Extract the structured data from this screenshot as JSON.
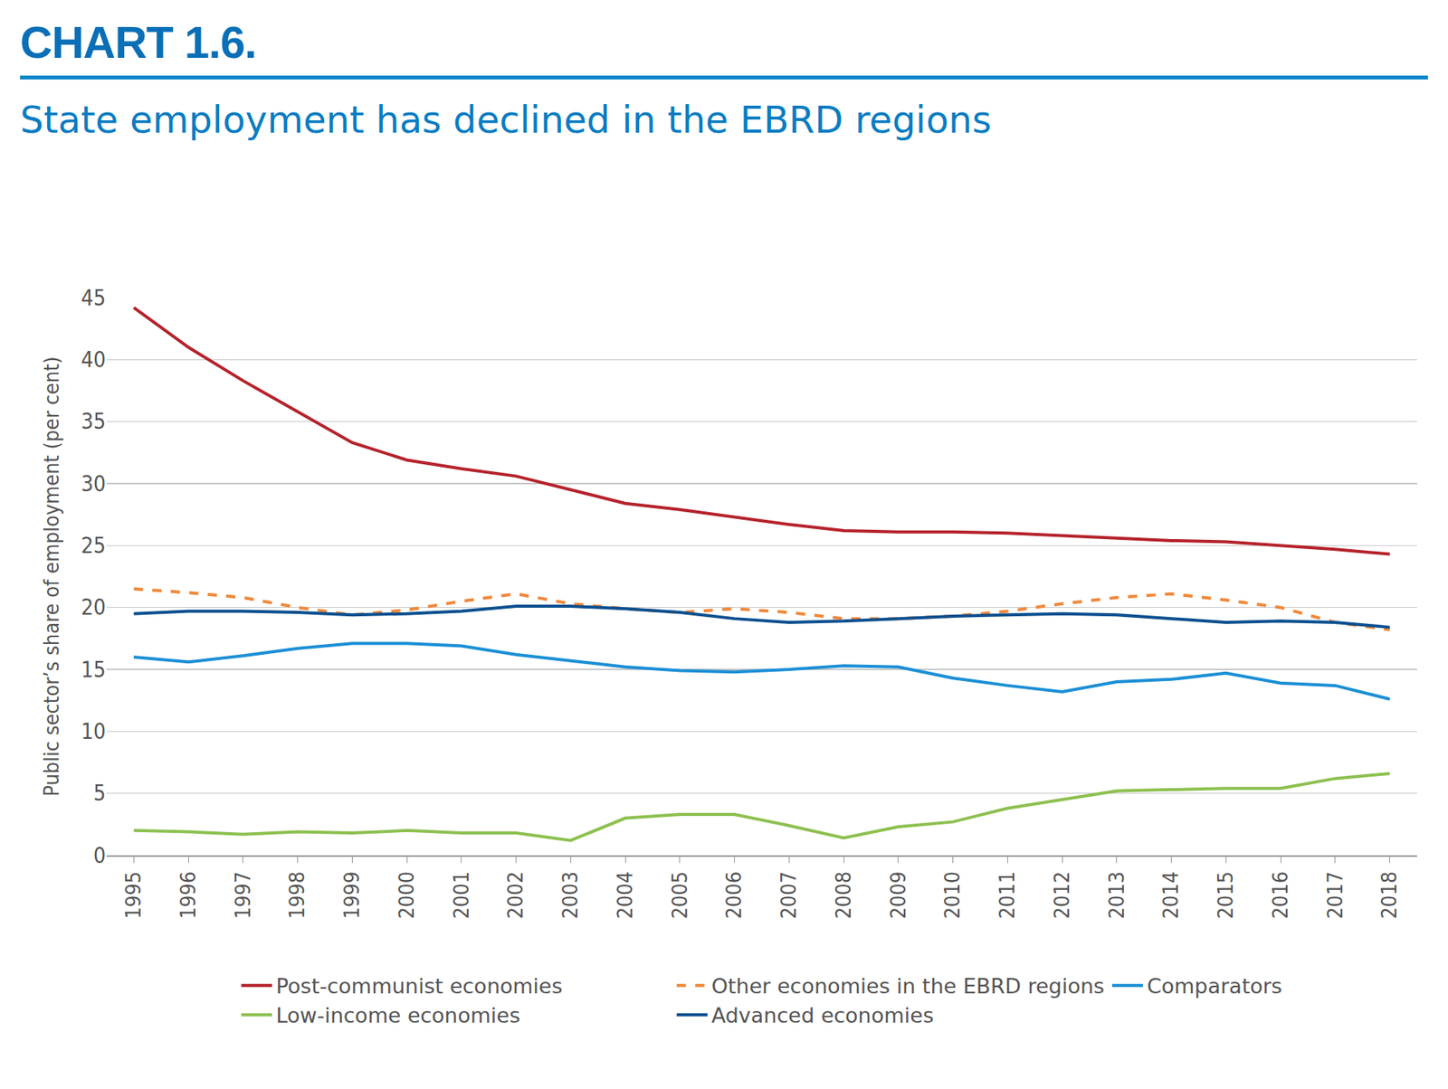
{
  "chart_data": {
    "type": "line",
    "title": "CHART 1.6.",
    "subtitle": "State employment has declined in the EBRD regions",
    "y_label": "Public sector’s share of employment (per cent)",
    "categories": [
      "1995",
      "1996",
      "1997",
      "1998",
      "1999",
      "2000",
      "2001",
      "2002",
      "2003",
      "2004",
      "2005",
      "2006",
      "2007",
      "2008",
      "2009",
      "2010",
      "2011",
      "2012",
      "2013",
      "2014",
      "2015",
      "2016",
      "2017",
      "2018"
    ],
    "series": [
      {
        "name": "Post-communist economies",
        "color": "#b5222b",
        "line_style": "solid",
        "values": [
          44.2,
          41.0,
          38.3,
          35.8,
          33.3,
          31.9,
          31.2,
          30.6,
          29.5,
          28.4,
          27.9,
          27.3,
          26.7,
          26.2,
          26.1,
          26.1,
          26.0,
          25.8,
          25.6,
          25.4,
          25.3,
          25.0,
          24.7,
          24.3
        ]
      },
      {
        "name": "Other economies in the EBRD regions",
        "color": "#f0883a",
        "line_style": "dash",
        "values": [
          21.5,
          21.2,
          20.8,
          20.0,
          19.4,
          19.8,
          20.5,
          21.1,
          20.3,
          19.9,
          19.6,
          19.9,
          19.6,
          19.1,
          19.1,
          19.3,
          19.7,
          20.3,
          20.8,
          21.1,
          20.6,
          20.0,
          18.8,
          18.2
        ]
      },
      {
        "name": "Comparators",
        "color": "#1b8fd6",
        "line_style": "solid",
        "values": [
          16.0,
          15.6,
          16.1,
          16.7,
          17.1,
          17.1,
          16.9,
          16.2,
          15.7,
          15.2,
          14.9,
          14.8,
          15.0,
          15.3,
          15.2,
          14.3,
          13.7,
          13.2,
          14.0,
          14.2,
          14.7,
          13.9,
          13.7,
          12.6
        ]
      },
      {
        "name": "Low-income economies",
        "color": "#8dc04f",
        "line_style": "solid",
        "values": [
          2.0,
          1.9,
          1.7,
          1.9,
          1.8,
          2.0,
          1.8,
          1.8,
          1.2,
          3.0,
          3.3,
          3.3,
          2.4,
          1.4,
          2.3,
          2.7,
          3.8,
          4.5,
          5.2,
          5.3,
          5.4,
          5.4,
          6.2,
          6.6
        ]
      },
      {
        "name": "Advanced economies",
        "color": "#0b4f8f",
        "line_style": "solid",
        "values": [
          19.5,
          19.7,
          19.7,
          19.6,
          19.4,
          19.5,
          19.7,
          20.1,
          20.1,
          19.9,
          19.6,
          19.1,
          18.8,
          18.9,
          19.1,
          19.3,
          19.4,
          19.5,
          19.4,
          19.1,
          18.8,
          18.9,
          18.8,
          18.4
        ]
      }
    ],
    "ylim": [
      0,
      45
    ],
    "yticks": [
      0,
      5,
      10,
      15,
      20,
      25,
      30,
      35,
      40,
      45
    ],
    "grid": true,
    "legend": "bottom"
  }
}
